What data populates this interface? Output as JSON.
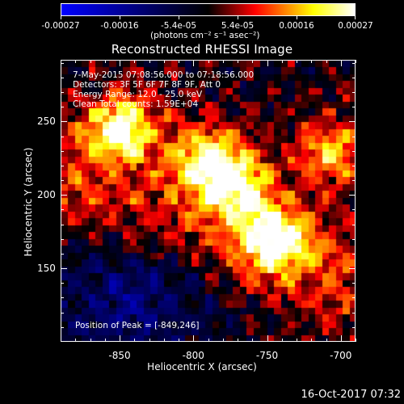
{
  "colorbar": {
    "tick_labels": [
      "-0.00027",
      "-0.00016",
      "-5.4e-05",
      "5.4e-05",
      "0.00016",
      "0.00027"
    ],
    "units": "(photons cm⁻² s⁻¹ asec⁻²)",
    "colors": [
      "#0000ff",
      "#000000",
      "#ff0000",
      "#ffff00",
      "#ffffff"
    ]
  },
  "chart_data": {
    "type": "heatmap",
    "title": "Reconstructed RHESSI Image",
    "xlabel": "Heliocentric X (arcsec)",
    "ylabel": "Heliocentric Y (arcsec)",
    "xticks": [
      "-850",
      "-800",
      "-750",
      "-700"
    ],
    "yticks": [
      "250",
      "200",
      "150"
    ],
    "xlim": [
      -890,
      -690
    ],
    "ylim": [
      100,
      292
    ],
    "value_range": [
      -0.00027,
      0.00027
    ],
    "colormap": "blue-black-red-yellow-white",
    "peak": [
      -849,
      246
    ],
    "sources": [
      {
        "x": -849,
        "y": 246,
        "intensity": 0.00027
      },
      {
        "x": -790,
        "y": 225,
        "intensity": 0.00024
      },
      {
        "x": -770,
        "y": 205,
        "intensity": 0.00022
      },
      {
        "x": -745,
        "y": 170,
        "intensity": 0.00025
      },
      {
        "x": -705,
        "y": 230,
        "intensity": 0.00018
      }
    ]
  },
  "info": {
    "time_range": "7-May-2015 07:08:56.000 to 07:18:56.000",
    "detectors": "Detectors: 3F 5F 6F 7F 8F 9F, Att 0",
    "energy": "Energy Range: 12.0 - 25.0 keV",
    "clean": "Clean    Total counts: 1.59E+04",
    "peak_position": "Position of Peak = [-849,246]"
  },
  "timestamp": "16-Oct-2017 07:32"
}
